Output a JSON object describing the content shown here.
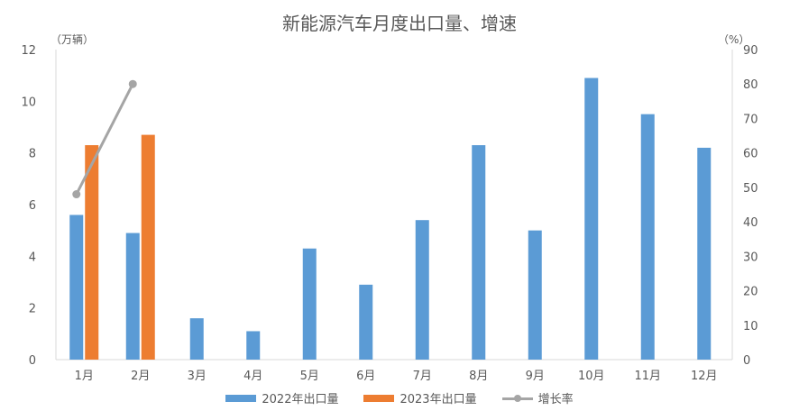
{
  "chart_data": {
    "type": "bar",
    "title": "新能源汽车月度出口量、增速",
    "y_left_unit": "（万辆）",
    "y_right_unit": "（%）",
    "categories": [
      "1月",
      "2月",
      "3月",
      "4月",
      "5月",
      "6月",
      "7月",
      "8月",
      "9月",
      "10月",
      "11月",
      "12月"
    ],
    "series": [
      {
        "name": "2022年出口量",
        "kind": "bar",
        "axis": "left",
        "color": "#5b9bd5",
        "values": [
          5.6,
          4.9,
          1.6,
          1.1,
          4.3,
          2.9,
          5.4,
          8.3,
          5.0,
          10.9,
          9.5,
          8.2
        ]
      },
      {
        "name": "2023年出口量",
        "kind": "bar",
        "axis": "left",
        "color": "#ed7d31",
        "values": [
          8.3,
          8.7,
          null,
          null,
          null,
          null,
          null,
          null,
          null,
          null,
          null,
          null
        ]
      },
      {
        "name": "增长率",
        "kind": "line",
        "axis": "right",
        "color": "#a5a5a5",
        "values": [
          48,
          80,
          null,
          null,
          null,
          null,
          null,
          null,
          null,
          null,
          null,
          null
        ]
      }
    ],
    "y_left_ticks": [
      "0",
      "2",
      "4",
      "6",
      "8",
      "10",
      "12"
    ],
    "y_right_ticks": [
      "0",
      "10",
      "20",
      "30",
      "40",
      "50",
      "60",
      "70",
      "80",
      "90"
    ],
    "ylim_left": [
      0,
      12
    ],
    "ylim_right": [
      0,
      90
    ],
    "grid": false,
    "legend_position": "bottom"
  }
}
